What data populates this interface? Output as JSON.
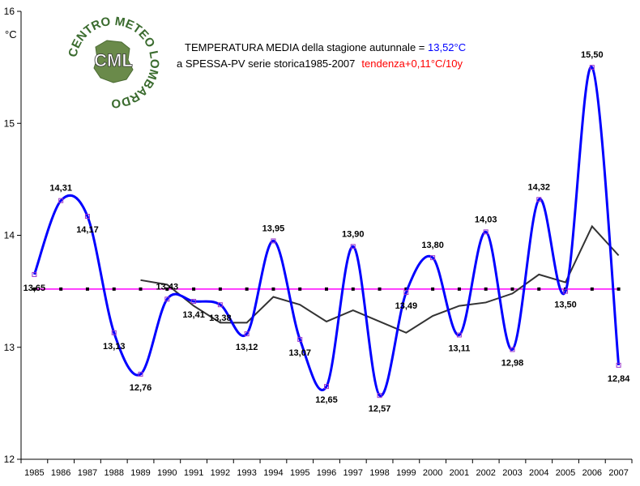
{
  "chart_data": {
    "type": "line",
    "title_line1_prefix": "TEMPERATURA MEDIA della stagione autunnale = ",
    "title_line1_value": "13,52°C",
    "title_line2_prefix": "a SPESSA-PV serie storica1985-2007",
    "title_line2_trend": "tendenza+0,11°C/10y",
    "ylabel": "°C",
    "ylim": [
      12,
      16
    ],
    "yticks": [
      "12",
      "13",
      "14",
      "15",
      "16"
    ],
    "categories": [
      "1985",
      "1986",
      "1987",
      "1988",
      "1989",
      "1990",
      "1991",
      "1992",
      "1993",
      "1994",
      "1995",
      "1996",
      "1997",
      "1998",
      "1999",
      "2000",
      "2001",
      "2002",
      "2003",
      "2004",
      "2005",
      "2006",
      "2007"
    ],
    "series": [
      {
        "role": "data",
        "color": "#0000ff",
        "values": [
          13.65,
          14.31,
          14.17,
          13.13,
          12.76,
          13.43,
          13.41,
          13.38,
          13.12,
          13.95,
          13.07,
          12.65,
          13.9,
          12.57,
          13.49,
          13.8,
          13.11,
          14.03,
          12.98,
          14.32,
          13.5,
          15.5,
          12.84
        ],
        "labels": [
          "13,65",
          "14,31",
          "14,17",
          "13,13",
          "12,76",
          "13,43",
          "13,41",
          "13,38",
          "13,12",
          "13,95",
          "13,07",
          "12,65",
          "13,90",
          "12,57",
          "13,49",
          "13,80",
          "13,11",
          "14,03",
          "12,98",
          "14,32",
          "13,50",
          "15,50",
          "12,84"
        ]
      },
      {
        "role": "mean",
        "color": "#ff00ff",
        "values": [
          13.52,
          13.52,
          13.52,
          13.52,
          13.52,
          13.52,
          13.52,
          13.52,
          13.52,
          13.52,
          13.52,
          13.52,
          13.52,
          13.52,
          13.52,
          13.52,
          13.52,
          13.52,
          13.52,
          13.52,
          13.52,
          13.52,
          13.52
        ]
      },
      {
        "role": "moving-average",
        "color": "#333333",
        "values": [
          null,
          null,
          null,
          null,
          13.6,
          13.56,
          13.37,
          13.22,
          13.22,
          13.45,
          13.38,
          13.23,
          13.33,
          13.23,
          13.13,
          13.28,
          13.37,
          13.4,
          13.48,
          13.65,
          13.58,
          14.08,
          13.82
        ]
      }
    ],
    "colors": {
      "title_value": "#0000ff",
      "title_trend": "#ff0000",
      "point_marker": "#9933cc",
      "axis": "#000000"
    },
    "grid": false
  },
  "logo": {
    "ring_top": "CENTRO METEO LOMBARDO",
    "center": "CML"
  }
}
